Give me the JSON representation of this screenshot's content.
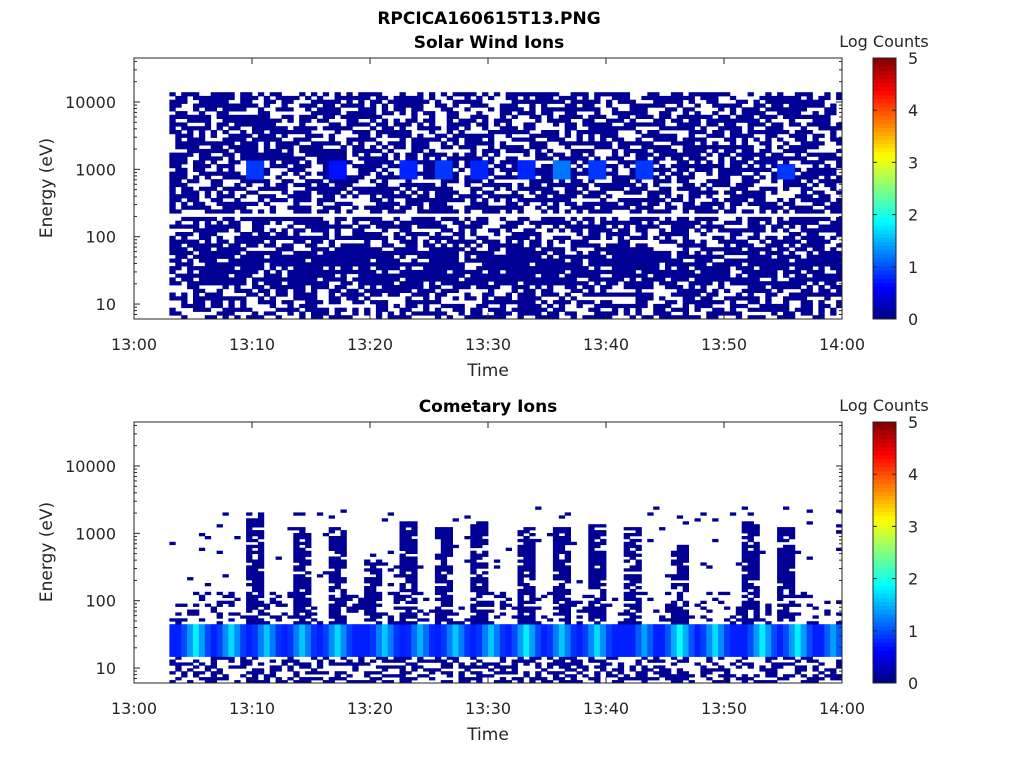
{
  "figure_title": "RPCICA160615T13.PNG",
  "colorbar": {
    "label": "Log Counts",
    "ticks": [
      "0",
      "1",
      "2",
      "3",
      "4",
      "5"
    ],
    "range": [
      0,
      5
    ],
    "colormap": "jet"
  },
  "chart_data": [
    {
      "type": "heatmap",
      "title": "Solar Wind Ions",
      "xlabel": "Time",
      "ylabel": "Energy (eV)",
      "x_ticks": [
        "13:00",
        "13:10",
        "13:20",
        "13:30",
        "13:40",
        "13:50",
        "14:00"
      ],
      "xlim": [
        "13:00",
        "14:00"
      ],
      "y_scale": "log",
      "y_ticks": [
        "10",
        "100",
        "1000",
        "10000"
      ],
      "ylim": [
        6,
        45000
      ],
      "data_start": "13:03",
      "data_end": "14:00",
      "summary": {
        "background_level": 0.1,
        "data_energy_range": [
          6,
          14000
        ],
        "hotspots": [
          {
            "time": "13:10",
            "energy": 1000,
            "value": 0.9
          },
          {
            "time": "13:17",
            "energy": 1000,
            "value": 0.7
          },
          {
            "time": "13:23",
            "energy": 1000,
            "value": 0.8
          },
          {
            "time": "13:26",
            "energy": 1000,
            "value": 0.9
          },
          {
            "time": "13:29",
            "energy": 1000,
            "value": 0.8
          },
          {
            "time": "13:33",
            "energy": 1000,
            "value": 0.8
          },
          {
            "time": "13:36",
            "energy": 1000,
            "value": 1.2
          },
          {
            "time": "13:39",
            "energy": 1000,
            "value": 0.9
          },
          {
            "time": "13:43",
            "energy": 1000,
            "value": 0.9
          },
          {
            "time": "13:55",
            "energy": 900,
            "value": 0.9
          }
        ]
      }
    },
    {
      "type": "heatmap",
      "title": "Cometary Ions",
      "xlabel": "Time",
      "ylabel": "Energy (eV)",
      "x_ticks": [
        "13:00",
        "13:10",
        "13:20",
        "13:30",
        "13:40",
        "13:50",
        "14:00"
      ],
      "xlim": [
        "13:00",
        "14:00"
      ],
      "y_scale": "log",
      "y_ticks": [
        "10",
        "100",
        "1000",
        "10000"
      ],
      "ylim": [
        6,
        45000
      ],
      "data_start": "13:03",
      "data_end": "14:00",
      "summary": {
        "background_level": 0.1,
        "band_energy_range": [
          15,
          45
        ],
        "band_level": 1.4,
        "band_peaks": [
          {
            "time": "13:05",
            "value": 1.8
          },
          {
            "time": "13:08",
            "value": 1.7
          },
          {
            "time": "13:11",
            "value": 1.6
          },
          {
            "time": "13:14",
            "value": 1.6
          },
          {
            "time": "13:17",
            "value": 1.7
          },
          {
            "time": "13:21",
            "value": 1.6
          },
          {
            "time": "13:24",
            "value": 1.5
          },
          {
            "time": "13:27",
            "value": 1.6
          },
          {
            "time": "13:30",
            "value": 1.6
          },
          {
            "time": "13:33",
            "value": 1.8
          },
          {
            "time": "13:36",
            "value": 1.6
          },
          {
            "time": "13:39",
            "value": 1.7
          },
          {
            "time": "13:43",
            "value": 1.4
          },
          {
            "time": "13:46",
            "value": 1.9
          },
          {
            "time": "13:49",
            "value": 1.7
          },
          {
            "time": "13:53",
            "value": 1.8
          },
          {
            "time": "13:56",
            "value": 1.8
          },
          {
            "time": "13:59",
            "value": 1.4
          }
        ],
        "plumes": [
          {
            "time": "13:10",
            "top_energy": 2000
          },
          {
            "time": "13:14",
            "top_energy": 1200
          },
          {
            "time": "13:17",
            "top_energy": 1300
          },
          {
            "time": "13:20",
            "top_energy": 500
          },
          {
            "time": "13:23",
            "top_energy": 1500
          },
          {
            "time": "13:26",
            "top_energy": 1300
          },
          {
            "time": "13:29",
            "top_energy": 1500
          },
          {
            "time": "13:33",
            "top_energy": 1300
          },
          {
            "time": "13:36",
            "top_energy": 1500
          },
          {
            "time": "13:39",
            "top_energy": 1400
          },
          {
            "time": "13:42",
            "top_energy": 1300
          },
          {
            "time": "13:46",
            "top_energy": 700
          },
          {
            "time": "13:52",
            "top_energy": 1500
          },
          {
            "time": "13:55",
            "top_energy": 1200
          }
        ]
      }
    }
  ]
}
